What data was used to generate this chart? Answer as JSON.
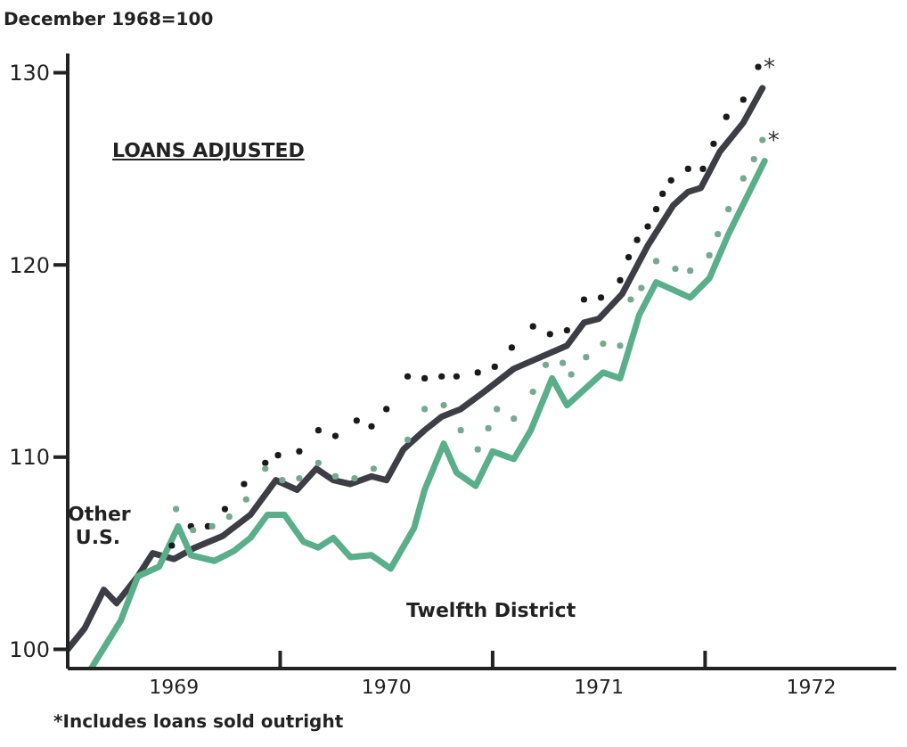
{
  "chart_data": {
    "type": "line",
    "title": "LOANS ADJUSTED",
    "ylabel": "December 1968=100",
    "annotations": [
      {
        "text": "*",
        "x": 1972.25,
        "y": 130.3
      },
      {
        "text": "*",
        "x": 1972.27,
        "y": 126.5
      },
      "*Includes loans sold outright"
    ],
    "xlim": [
      1969,
      1972.9
    ],
    "ylim": [
      99,
      131
    ],
    "xticks": [
      {
        "value": 1969.5,
        "label": "1969"
      },
      {
        "value": 1970,
        "label": null
      },
      {
        "value": 1970.5,
        "label": "1970"
      },
      {
        "value": 1971,
        "label": null
      },
      {
        "value": 1971.5,
        "label": "1971"
      },
      {
        "value": 1972,
        "label": null
      },
      {
        "value": 1972.5,
        "label": "1972"
      }
    ],
    "yticks": [
      100,
      110,
      120,
      130
    ],
    "series": [
      {
        "name": "Other U.S.",
        "marker": "none",
        "color": "#3d3d45",
        "x": [
          1969.0,
          1969.08,
          1969.17,
          1969.23,
          1969.33,
          1969.4,
          1969.5,
          1969.6,
          1969.73,
          1969.86,
          1969.98,
          1970.08,
          1970.17,
          1970.25,
          1970.33,
          1970.43,
          1970.5,
          1970.58,
          1970.68,
          1970.76,
          1970.85,
          1970.96,
          1971.1,
          1971.35,
          1971.43,
          1971.5,
          1971.61,
          1971.73,
          1971.85,
          1971.92,
          1971.98,
          1972.07,
          1972.18,
          1972.27
        ],
        "values": [
          100,
          101.1,
          103.1,
          102.4,
          103.8,
          105.0,
          104.7,
          105.3,
          105.9,
          107.0,
          108.8,
          108.3,
          109.4,
          108.8,
          108.6,
          109.0,
          108.8,
          110.4,
          111.4,
          112.1,
          112.5,
          113.4,
          114.6,
          115.8,
          117.0,
          117.2,
          118.5,
          121.0,
          123.1,
          123.8,
          124.0,
          125.9,
          127.4,
          129.2
        ]
      },
      {
        "name": "Twelfth District",
        "marker": "none",
        "color": "#5aae8a",
        "x": [
          1969.11,
          1969.25,
          1969.33,
          1969.43,
          1969.52,
          1969.58,
          1969.69,
          1969.78,
          1969.86,
          1969.94,
          1970.02,
          1970.11,
          1970.18,
          1970.25,
          1970.33,
          1970.43,
          1970.52,
          1970.63,
          1970.68,
          1970.77,
          1970.83,
          1970.92,
          1971.0,
          1971.1,
          1971.18,
          1971.28,
          1971.35,
          1971.52,
          1971.6,
          1971.69,
          1971.77,
          1971.93,
          1972.02,
          1972.11,
          1972.28
        ],
        "values": [
          99.0,
          101.5,
          103.8,
          104.3,
          106.4,
          104.9,
          104.6,
          105.1,
          105.8,
          107.0,
          107.0,
          105.6,
          105.3,
          105.8,
          104.8,
          104.9,
          104.2,
          106.3,
          108.3,
          110.7,
          109.2,
          108.5,
          110.3,
          109.9,
          111.4,
          114.1,
          112.7,
          114.4,
          114.1,
          117.4,
          119.1,
          118.3,
          119.3,
          121.6,
          125.4
        ]
      },
      {
        "type": "scatter",
        "marker": "circle",
        "color": "#1a1a1a",
        "x": [
          1969.49,
          1969.58,
          1969.66,
          1969.74,
          1969.83,
          1969.93,
          1969.99,
          1970.09,
          1970.18,
          1970.26,
          1970.36,
          1970.43,
          1970.5,
          1970.6,
          1970.68,
          1970.76,
          1970.83,
          1970.93,
          1971.01,
          1971.09,
          1971.19,
          1971.27,
          1971.35,
          1971.43,
          1971.51,
          1971.6,
          1971.64,
          1971.68,
          1971.73,
          1971.77,
          1971.8,
          1971.84,
          1971.92,
          1971.99,
          1972.04,
          1972.1,
          1972.18,
          1972.25
        ],
        "values": [
          105.4,
          106.4,
          106.4,
          107.3,
          108.6,
          109.7,
          110.1,
          110.3,
          111.4,
          111.1,
          111.9,
          111.6,
          112.5,
          114.2,
          114.1,
          114.2,
          114.2,
          114.4,
          114.7,
          115.7,
          116.8,
          116.4,
          116.6,
          118.2,
          118.3,
          119.2,
          120.4,
          121.3,
          122.0,
          122.9,
          123.7,
          124.4,
          125.0,
          125.0,
          126.3,
          127.7,
          128.6,
          130.3
        ]
      },
      {
        "type": "scatter",
        "marker": "circle",
        "color": "#78a890",
        "x": [
          1969.51,
          1969.59,
          1969.68,
          1969.76,
          1969.84,
          1969.93,
          1970.01,
          1970.09,
          1970.18,
          1970.26,
          1970.35,
          1970.44,
          1970.6,
          1970.68,
          1970.77,
          1970.85,
          1970.93,
          1970.98,
          1971.02,
          1971.1,
          1971.19,
          1971.25,
          1971.33,
          1971.37,
          1971.44,
          1971.52,
          1971.6,
          1971.65,
          1971.7,
          1971.77,
          1971.86,
          1971.93,
          1972.02,
          1972.06,
          1972.11,
          1972.18,
          1972.23,
          1972.27
        ],
        "values": [
          107.3,
          106.2,
          106.4,
          106.9,
          107.8,
          109.4,
          108.8,
          108.9,
          109.7,
          109.0,
          108.9,
          109.4,
          110.9,
          112.5,
          112.7,
          111.4,
          110.4,
          111.5,
          112.5,
          112.0,
          113.4,
          114.8,
          114.9,
          114.3,
          115.2,
          115.9,
          115.8,
          118.2,
          118.8,
          120.2,
          119.8,
          119.7,
          120.5,
          121.6,
          122.9,
          124.5,
          125.5,
          126.5
        ]
      }
    ]
  }
}
